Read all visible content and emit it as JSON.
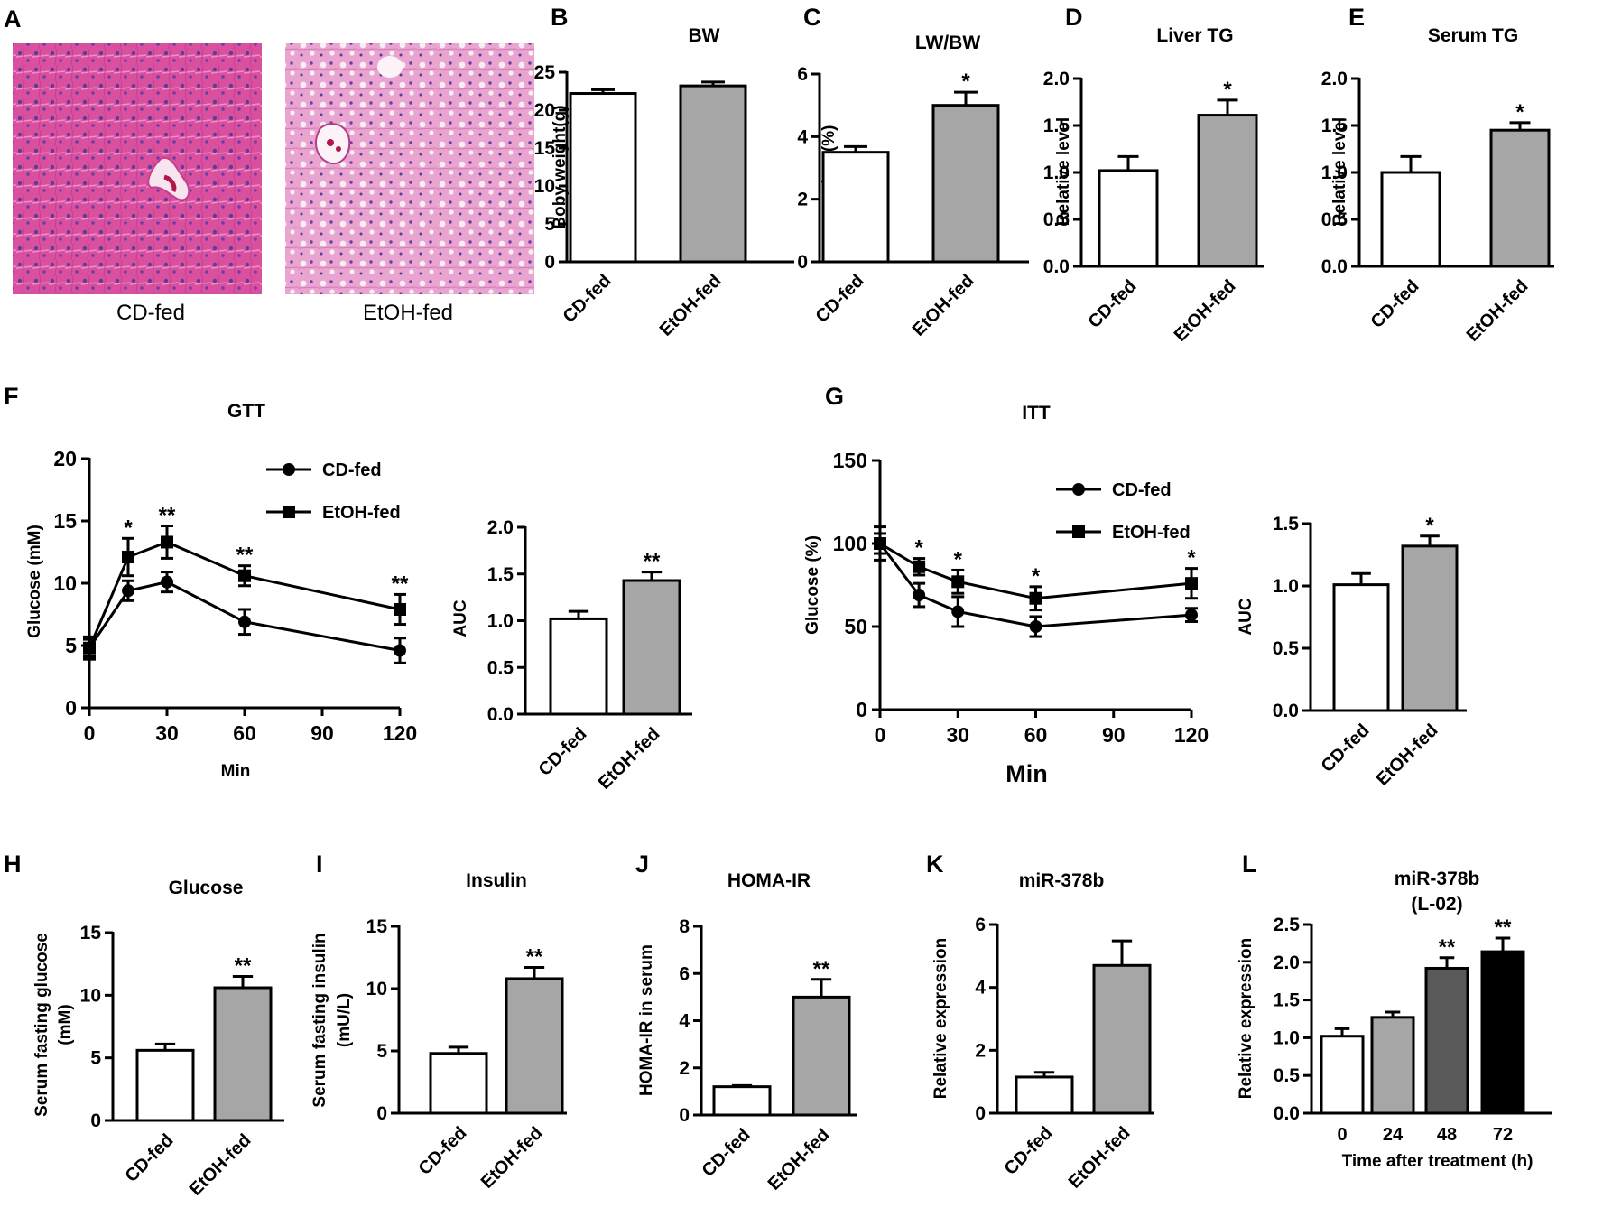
{
  "colors": {
    "white_bar": "#ffffff",
    "grey_bar": "#a6a6a6",
    "dark_grey_bar": "#595959",
    "black_bar": "#000000",
    "stain_pink": "#d9519e",
    "stain_light": "#e9a4cf"
  },
  "histology": {
    "letter": "A",
    "captions": [
      "CD-fed",
      "EtOH-fed"
    ]
  },
  "chart_data": [
    {
      "id": "B",
      "letter": "B",
      "type": "bar",
      "title": "BW",
      "ylabel": "Boby weight(g)",
      "ylim": [
        0,
        25
      ],
      "yticks": [
        0,
        5,
        10,
        15,
        20,
        25
      ],
      "ytick_labels": [
        "0",
        "5",
        "10",
        "15",
        "20",
        "25"
      ],
      "categories": [
        "CD-fed",
        "EtOH-fed"
      ],
      "values": [
        22.2,
        23.2
      ],
      "errors": [
        0.5,
        0.5
      ],
      "fills": [
        "white",
        "grey"
      ],
      "stars": [
        "",
        ""
      ]
    },
    {
      "id": "C",
      "letter": "C",
      "type": "bar",
      "title": "LW/BW",
      "ylabel": "LW/BW(%)",
      "ylim": [
        0,
        6
      ],
      "yticks": [
        0,
        2,
        4,
        6
      ],
      "ytick_labels": [
        "0",
        "2",
        "4",
        "6"
      ],
      "categories": [
        "CD-fed",
        "EtOH-fed"
      ],
      "values": [
        3.5,
        5.0
      ],
      "errors": [
        0.18,
        0.42
      ],
      "fills": [
        "white",
        "grey"
      ],
      "stars": [
        "",
        "*"
      ]
    },
    {
      "id": "D",
      "letter": "D",
      "type": "bar",
      "title": "Liver TG",
      "ylabel": "Relative  level",
      "ylim": [
        0,
        2
      ],
      "yticks": [
        0,
        0.5,
        1,
        1.5,
        2
      ],
      "ytick_labels": [
        "0.0",
        "0.5",
        "1.0",
        "1.5",
        "2.0"
      ],
      "categories": [
        "CD-fed",
        "EtOH-fed"
      ],
      "values": [
        1.02,
        1.61
      ],
      "errors": [
        0.15,
        0.16
      ],
      "fills": [
        "white",
        "grey"
      ],
      "stars": [
        "",
        "*"
      ]
    },
    {
      "id": "E",
      "letter": "E",
      "type": "bar",
      "title": "Serum TG",
      "ylabel": "Relative  level",
      "ylim": [
        0,
        2
      ],
      "yticks": [
        0,
        0.5,
        1,
        1.5,
        2
      ],
      "ytick_labels": [
        "0.0",
        "0.5",
        "1.0",
        "1.5",
        "2.0"
      ],
      "categories": [
        "CD-fed",
        "EtOH-fed"
      ],
      "values": [
        1.0,
        1.45
      ],
      "errors": [
        0.17,
        0.08
      ],
      "fills": [
        "white",
        "grey"
      ],
      "stars": [
        "",
        "*"
      ]
    },
    {
      "id": "F",
      "letter": "F",
      "type": "line",
      "title": "GTT",
      "xlabel": "Min",
      "ylabel": "Glucose (mM)",
      "x": [
        0,
        15,
        30,
        60,
        120
      ],
      "xlim": [
        0,
        120
      ],
      "xticks": [
        0,
        30,
        60,
        90,
        120
      ],
      "xtick_labels": [
        "0",
        "30",
        "60",
        "90",
        "120"
      ],
      "ylim": [
        0,
        20
      ],
      "yticks": [
        0,
        5,
        10,
        15,
        20
      ],
      "ytick_labels": [
        "0",
        "5",
        "10",
        "15",
        "20"
      ],
      "series": [
        {
          "name": "CD-fed",
          "marker": "circle",
          "values": [
            4.8,
            9.4,
            10.1,
            6.9,
            4.6
          ],
          "errors": [
            0.9,
            0.8,
            0.8,
            1.0,
            1.0
          ]
        },
        {
          "name": "EtOH-fed",
          "marker": "square",
          "values": [
            4.8,
            12.1,
            13.3,
            10.6,
            7.9
          ],
          "errors": [
            0.7,
            1.5,
            1.3,
            0.8,
            1.2
          ]
        }
      ],
      "stars": [
        "",
        "*",
        "**",
        "**",
        "**"
      ]
    },
    {
      "id": "F2",
      "letter": "",
      "type": "bar",
      "title": "",
      "ylabel": "AUC",
      "ylim": [
        0,
        2
      ],
      "yticks": [
        0,
        0.5,
        1,
        1.5,
        2
      ],
      "ytick_labels": [
        "0.0",
        "0.5",
        "1.0",
        "1.5",
        "2.0"
      ],
      "categories": [
        "CD-fed",
        "EtOH-fed"
      ],
      "values": [
        1.02,
        1.43
      ],
      "errors": [
        0.08,
        0.09
      ],
      "fills": [
        "white",
        "grey"
      ],
      "stars": [
        "",
        "**"
      ]
    },
    {
      "id": "G",
      "letter": "G",
      "type": "line",
      "title": "ITT",
      "xlabel": "Min",
      "ylabel": "Glucose (%)",
      "x": [
        0,
        15,
        30,
        60,
        120
      ],
      "xlim": [
        0,
        120
      ],
      "xticks": [
        0,
        30,
        60,
        90,
        120
      ],
      "xtick_labels": [
        "0",
        "30",
        "60",
        "90",
        "120"
      ],
      "ylim": [
        0,
        150
      ],
      "yticks": [
        0,
        50,
        100,
        150
      ],
      "ytick_labels": [
        "0",
        "50",
        "100",
        "150"
      ],
      "series": [
        {
          "name": "CD-fed",
          "marker": "circle",
          "values": [
            100,
            69,
            59,
            50,
            57
          ],
          "errors": [
            10,
            7,
            9,
            6,
            4
          ]
        },
        {
          "name": "EtOH-fed",
          "marker": "square",
          "values": [
            100,
            86,
            77,
            67,
            76
          ],
          "errors": [
            6,
            5,
            7,
            7,
            9
          ]
        }
      ],
      "stars": [
        "",
        "*",
        "*",
        "*",
        "*"
      ]
    },
    {
      "id": "G2",
      "letter": "",
      "type": "bar",
      "title": "",
      "ylabel": "AUC",
      "ylim": [
        0,
        1.5
      ],
      "yticks": [
        0,
        0.5,
        1,
        1.5
      ],
      "ytick_labels": [
        "0.0",
        "0.5",
        "1.0",
        "1.5"
      ],
      "categories": [
        "CD-fed",
        "EtOH-fed"
      ],
      "values": [
        1.01,
        1.32
      ],
      "errors": [
        0.09,
        0.08
      ],
      "fills": [
        "white",
        "grey"
      ],
      "stars": [
        "",
        "*"
      ]
    },
    {
      "id": "H",
      "letter": "H",
      "type": "bar",
      "title": "Glucose",
      "ylabel": "Serum fasting glucose",
      "ylabel2": "(mM)",
      "ylim": [
        0,
        15
      ],
      "yticks": [
        0,
        5,
        10,
        15
      ],
      "ytick_labels": [
        "0",
        "5",
        "10",
        "15"
      ],
      "categories": [
        "CD-fed",
        "EtOH-fed"
      ],
      "values": [
        5.6,
        10.6
      ],
      "errors": [
        0.5,
        0.9
      ],
      "fills": [
        "white",
        "grey"
      ],
      "stars": [
        "",
        "**"
      ]
    },
    {
      "id": "I",
      "letter": "I",
      "type": "bar",
      "title": "Insulin",
      "ylabel": "Serum fasting insulin",
      "ylabel2": "(mU/L)",
      "ylim": [
        0,
        15
      ],
      "yticks": [
        0,
        5,
        10,
        15
      ],
      "ytick_labels": [
        "0",
        "5",
        "10",
        "15"
      ],
      "categories": [
        "CD-fed",
        "EtOH-fed"
      ],
      "values": [
        4.8,
        10.8
      ],
      "errors": [
        0.5,
        0.9
      ],
      "fills": [
        "white",
        "grey"
      ],
      "stars": [
        "",
        "**"
      ]
    },
    {
      "id": "J",
      "letter": "J",
      "type": "bar",
      "title": "HOMA-IR",
      "ylabel": "HOMA-IR in serum",
      "ylim": [
        0,
        8
      ],
      "yticks": [
        0,
        2,
        4,
        6,
        8
      ],
      "ytick_labels": [
        "0",
        "2",
        "4",
        "6",
        "8"
      ],
      "categories": [
        "CD-fed",
        "EtOH-fed"
      ],
      "values": [
        1.2,
        5.0
      ],
      "errors": [
        0.05,
        0.75
      ],
      "fills": [
        "white",
        "grey"
      ],
      "stars": [
        "",
        "**"
      ]
    },
    {
      "id": "K",
      "letter": "K",
      "type": "bar",
      "title": "miR-378b",
      "ylabel": "Relative  expression",
      "ylim": [
        0,
        6
      ],
      "yticks": [
        0,
        2,
        4,
        6
      ],
      "ytick_labels": [
        "0",
        "2",
        "4",
        "6"
      ],
      "categories": [
        "CD-fed",
        "EtOH-fed"
      ],
      "values": [
        1.15,
        4.7
      ],
      "errors": [
        0.15,
        0.78
      ],
      "fills": [
        "white",
        "grey"
      ],
      "stars": [
        "",
        ""
      ]
    },
    {
      "id": "L",
      "letter": "L",
      "type": "bar",
      "title": "miR-378b",
      "title2": "(L-02)",
      "ylabel": "Relative  expression",
      "xlabel": "Time after treatment (h)",
      "ylim": [
        0,
        2.5
      ],
      "yticks": [
        0,
        0.5,
        1,
        1.5,
        2,
        2.5
      ],
      "ytick_labels": [
        "0.0",
        "0.5",
        "1.0",
        "1.5",
        "2.0",
        "2.5"
      ],
      "categories": [
        "0",
        "24",
        "48",
        "72"
      ],
      "values": [
        1.02,
        1.27,
        1.92,
        2.14
      ],
      "errors": [
        0.1,
        0.07,
        0.14,
        0.18
      ],
      "fills": [
        "white",
        "grey",
        "darkgrey",
        "black"
      ],
      "stars": [
        "",
        "",
        "**",
        "**"
      ]
    }
  ]
}
